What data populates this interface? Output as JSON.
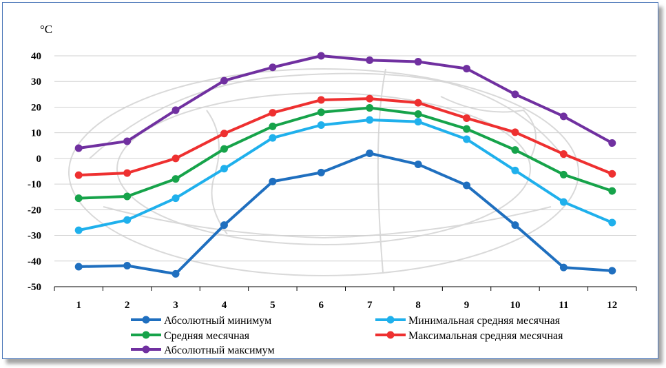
{
  "chart_data": {
    "type": "line",
    "ylabel": "°C",
    "xlabel": "",
    "categories": [
      "1",
      "2",
      "3",
      "4",
      "5",
      "6",
      "7",
      "8",
      "9",
      "10",
      "11",
      "12"
    ],
    "ylim": [
      -50,
      40
    ],
    "yticks": [
      40,
      30,
      20,
      10,
      0,
      -10,
      -20,
      -30,
      -40,
      -50
    ],
    "grid": true,
    "legend_position": "bottom",
    "series": [
      {
        "name": "Абсолютный минимум",
        "color": "#1f6fbf",
        "values": [
          -42.2,
          -41.8,
          -45,
          -26,
          -9,
          -5.5,
          2,
          -2.3,
          -10.5,
          -26,
          -42.5,
          -43.8
        ]
      },
      {
        "name": "Минимальная средняя месячная",
        "color": "#1fb0ec",
        "values": [
          -28,
          -24,
          -15.5,
          -4,
          8,
          13,
          15,
          14.3,
          7.5,
          -4.7,
          -17,
          -25
        ]
      },
      {
        "name": "Средняя месячная",
        "color": "#16a34a",
        "values": [
          -15.5,
          -14.8,
          -8,
          3.7,
          12.5,
          18,
          19.7,
          17.3,
          11.5,
          3.3,
          -6.3,
          -12.7
        ]
      },
      {
        "name": "Максимальная средняя месячная",
        "color": "#ee3030",
        "values": [
          -6.5,
          -5.7,
          0,
          9.7,
          17.8,
          22.8,
          23.3,
          21.7,
          15.7,
          10.2,
          1.7,
          -6
        ]
      },
      {
        "name": "Абсолютный максимум",
        "color": "#7030a0",
        "values": [
          4,
          6.7,
          18.8,
          30.3,
          35.5,
          40,
          38.3,
          37.7,
          35,
          25,
          16.4,
          6
        ]
      }
    ]
  }
}
